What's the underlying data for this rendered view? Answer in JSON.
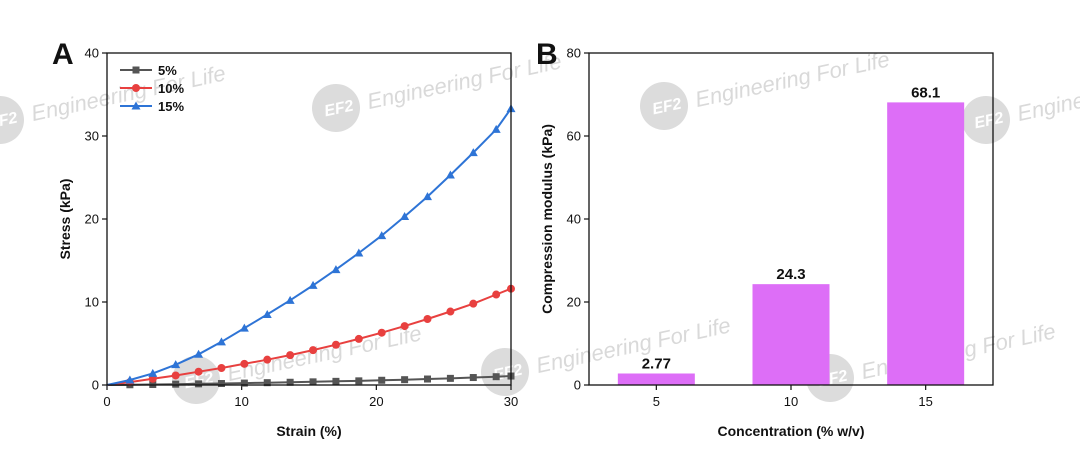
{
  "watermark": {
    "logo": "EF",
    "logo_accent": "2",
    "text": "Engineering For Life"
  },
  "chart_data": [
    {
      "panel": "A",
      "type": "line",
      "xlabel": "Strain (%)",
      "ylabel": "Stress (kPa)",
      "xlim": [
        0,
        30
      ],
      "ylim": [
        0,
        40
      ],
      "xticks": [
        0,
        10,
        20,
        30
      ],
      "yticks": [
        0,
        10,
        20,
        30,
        40
      ],
      "legend_position": "top-left",
      "x": [
        0,
        1.7,
        3.4,
        5.1,
        6.8,
        8.5,
        10.2,
        11.9,
        13.6,
        15.3,
        17,
        18.7,
        20.4,
        22.1,
        23.8,
        25.5,
        27.2,
        28.9,
        30
      ],
      "series": [
        {
          "name": "5%",
          "color": "#555555",
          "marker": "square",
          "values": [
            0,
            0.03,
            0.06,
            0.1,
            0.14,
            0.18,
            0.23,
            0.28,
            0.33,
            0.38,
            0.44,
            0.5,
            0.57,
            0.64,
            0.72,
            0.8,
            0.9,
            1.0,
            1.08
          ]
        },
        {
          "name": "10%",
          "color": "#e8403f",
          "marker": "circle",
          "values": [
            0,
            0.35,
            0.75,
            1.15,
            1.6,
            2.05,
            2.55,
            3.05,
            3.6,
            4.2,
            4.85,
            5.55,
            6.3,
            7.1,
            7.95,
            8.85,
            9.8,
            10.9,
            11.6
          ]
        },
        {
          "name": "15%",
          "color": "#2e74d6",
          "marker": "triangle",
          "values": [
            0,
            0.6,
            1.4,
            2.45,
            3.7,
            5.2,
            6.85,
            8.5,
            10.2,
            12.0,
            13.9,
            15.9,
            18.0,
            20.3,
            22.7,
            25.3,
            28.0,
            30.8,
            33.3
          ]
        }
      ]
    },
    {
      "panel": "B",
      "type": "bar",
      "xlabel": "Concentration (% w/v)",
      "ylabel": "Compression modulus (kPa)",
      "categories": [
        "5",
        "10",
        "15"
      ],
      "values": [
        2.77,
        24.3,
        68.1
      ],
      "value_labels": [
        "2.77",
        "24.3",
        "68.1"
      ],
      "ylim": [
        0,
        80
      ],
      "yticks": [
        0,
        20,
        40,
        60,
        80
      ],
      "bar_color": "#dd6ef7"
    }
  ]
}
